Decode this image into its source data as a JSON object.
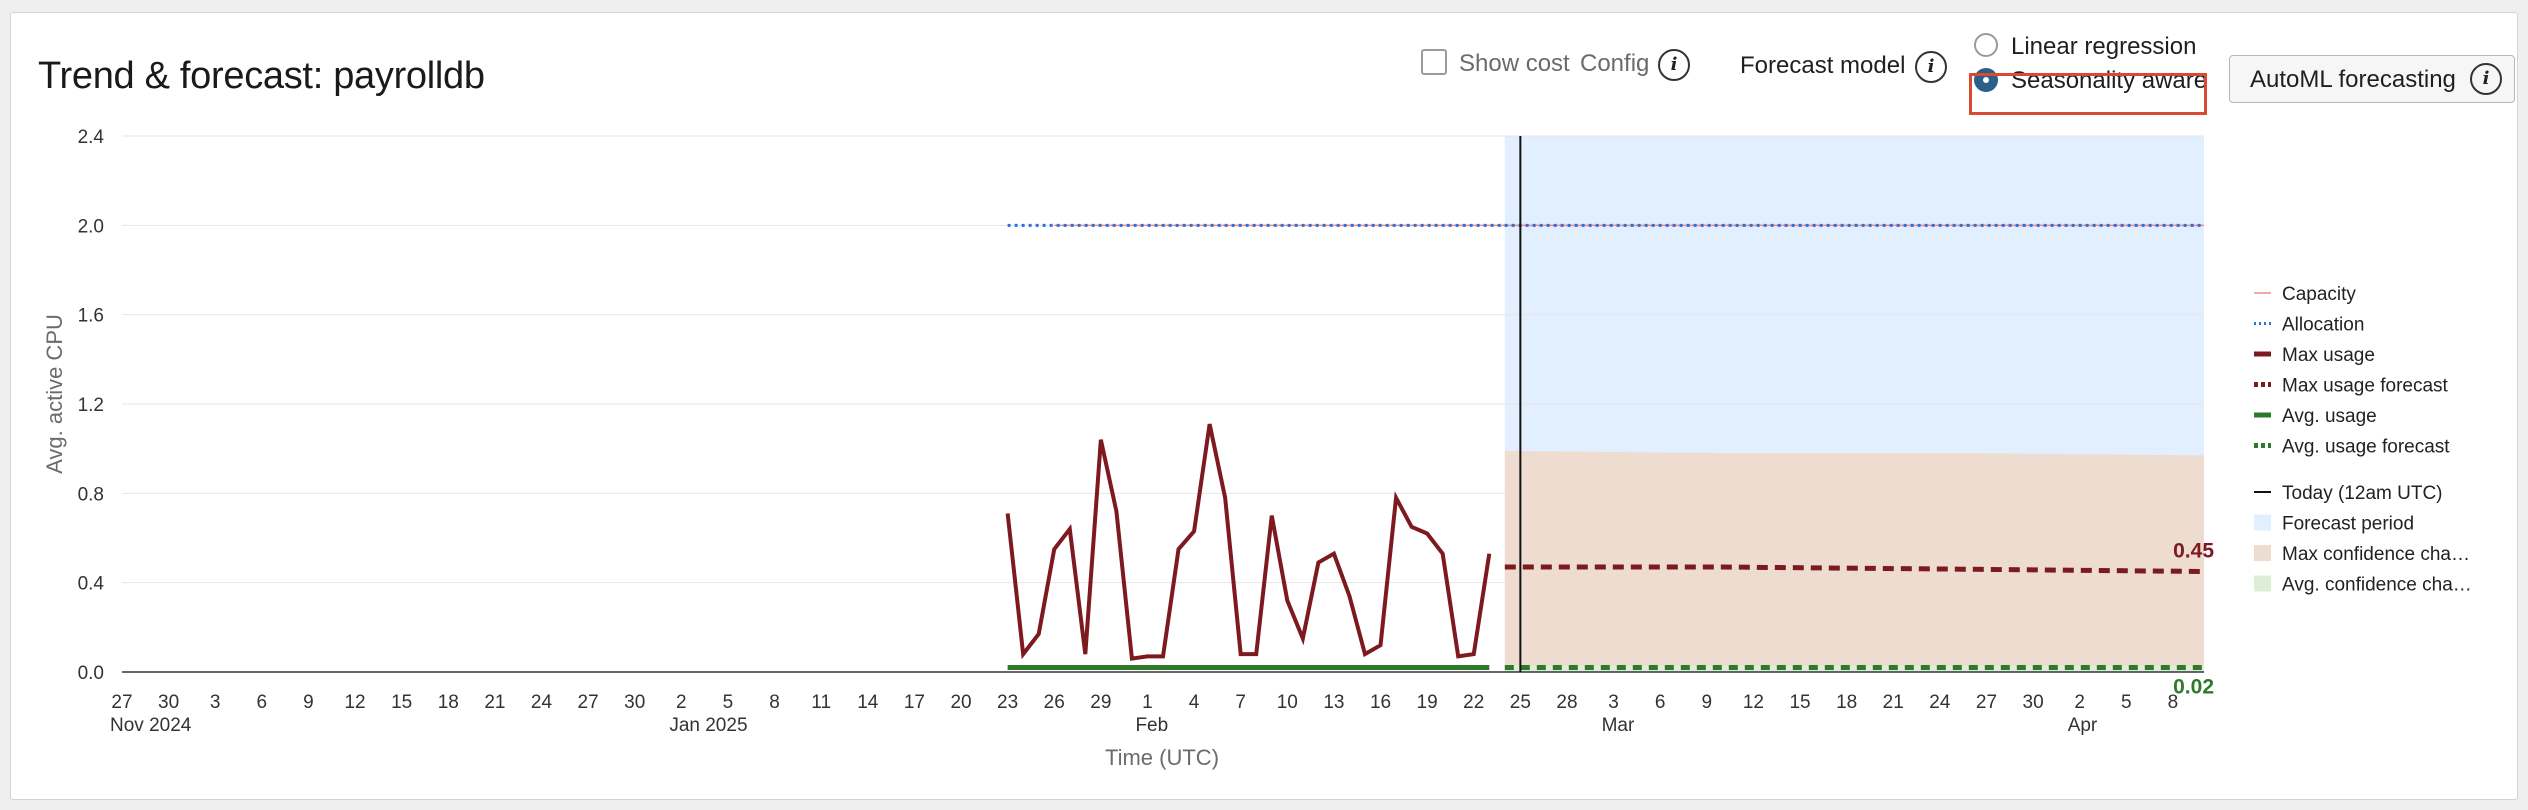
{
  "header": {
    "title": "Trend & forecast: payrolldb",
    "show_cost_label": "Show cost",
    "config_label": "Config",
    "forecast_model_label": "Forecast model",
    "model_options": [
      {
        "label": "Linear regression",
        "selected": false
      },
      {
        "label": "Seasonality aware",
        "selected": true
      }
    ],
    "automl_label": "AutoML forecasting",
    "info_glyph": "i"
  },
  "colors": {
    "capacity": "#f08a8a",
    "allocation": "#2e6fd9",
    "max_usage": "#7d1a1f",
    "avg_usage": "#2f7a2a",
    "today": "#111111",
    "forecast_period": "#e2efff",
    "max_confidence": "#efdcd0",
    "avg_confidence": "#dcefd6",
    "highlight": "#d84a32"
  },
  "chart_data": {
    "type": "line",
    "xlabel": "Time (UTC)",
    "ylabel": "Avg. active CPU",
    "ylim": [
      0,
      2.4
    ],
    "yticks": [
      "0.0",
      "0.4",
      "0.8",
      "1.2",
      "1.6",
      "2.0",
      "2.4"
    ],
    "x_range": [
      "2024-11-27",
      "2025-04-10"
    ],
    "x_ticks": [
      {
        "date": "2024-11-27",
        "label": "27",
        "sub": "Nov 2024"
      },
      {
        "date": "2024-11-30",
        "label": "30"
      },
      {
        "date": "2024-12-03",
        "label": "3"
      },
      {
        "date": "2024-12-06",
        "label": "6"
      },
      {
        "date": "2024-12-09",
        "label": "9"
      },
      {
        "date": "2024-12-12",
        "label": "12"
      },
      {
        "date": "2024-12-15",
        "label": "15"
      },
      {
        "date": "2024-12-18",
        "label": "18"
      },
      {
        "date": "2024-12-21",
        "label": "21"
      },
      {
        "date": "2024-12-24",
        "label": "24"
      },
      {
        "date": "2024-12-27",
        "label": "27"
      },
      {
        "date": "2024-12-30",
        "label": "30"
      },
      {
        "date": "2025-01-02",
        "label": "2",
        "sub": "Jan 2025"
      },
      {
        "date": "2025-01-05",
        "label": "5"
      },
      {
        "date": "2025-01-08",
        "label": "8"
      },
      {
        "date": "2025-01-11",
        "label": "11"
      },
      {
        "date": "2025-01-14",
        "label": "14"
      },
      {
        "date": "2025-01-17",
        "label": "17"
      },
      {
        "date": "2025-01-20",
        "label": "20"
      },
      {
        "date": "2025-01-23",
        "label": "23"
      },
      {
        "date": "2025-01-26",
        "label": "26"
      },
      {
        "date": "2025-01-29",
        "label": "29"
      },
      {
        "date": "2025-02-01",
        "label": "1",
        "sub": "Feb"
      },
      {
        "date": "2025-02-04",
        "label": "4"
      },
      {
        "date": "2025-02-07",
        "label": "7"
      },
      {
        "date": "2025-02-10",
        "label": "10"
      },
      {
        "date": "2025-02-13",
        "label": "13"
      },
      {
        "date": "2025-02-16",
        "label": "16"
      },
      {
        "date": "2025-02-19",
        "label": "19"
      },
      {
        "date": "2025-02-22",
        "label": "22"
      },
      {
        "date": "2025-02-25",
        "label": "25"
      },
      {
        "date": "2025-02-28",
        "label": "28"
      },
      {
        "date": "2025-03-03",
        "label": "3",
        "sub": "Mar"
      },
      {
        "date": "2025-03-06",
        "label": "6"
      },
      {
        "date": "2025-03-09",
        "label": "9"
      },
      {
        "date": "2025-03-12",
        "label": "12"
      },
      {
        "date": "2025-03-15",
        "label": "15"
      },
      {
        "date": "2025-03-18",
        "label": "18"
      },
      {
        "date": "2025-03-21",
        "label": "21"
      },
      {
        "date": "2025-03-24",
        "label": "24"
      },
      {
        "date": "2025-03-27",
        "label": "27"
      },
      {
        "date": "2025-03-30",
        "label": "30"
      },
      {
        "date": "2025-04-02",
        "label": "2",
        "sub": "Apr"
      },
      {
        "date": "2025-04-05",
        "label": "5"
      },
      {
        "date": "2025-04-08",
        "label": "8"
      }
    ],
    "forecast_period": [
      "2025-02-24",
      "2025-04-10"
    ],
    "today": "2025-02-25",
    "series": [
      {
        "name": "Capacity",
        "style": "solid",
        "color_key": "capacity",
        "x": [
          "2025-01-26",
          "2025-04-10"
        ],
        "y": [
          2.0,
          2.0
        ]
      },
      {
        "name": "Allocation",
        "style": "dotted",
        "color_key": "allocation",
        "x": [
          "2025-01-23",
          "2025-04-10"
        ],
        "y": [
          2.0,
          2.0
        ]
      },
      {
        "name": "Max usage",
        "style": "solid",
        "color_key": "max_usage",
        "x": [
          "2025-01-23",
          "2025-01-24",
          "2025-01-25",
          "2025-01-26",
          "2025-01-27",
          "2025-01-28",
          "2025-01-29",
          "2025-01-30",
          "2025-01-31",
          "2025-02-01",
          "2025-02-02",
          "2025-02-03",
          "2025-02-04",
          "2025-02-05",
          "2025-02-06",
          "2025-02-07",
          "2025-02-08",
          "2025-02-09",
          "2025-02-10",
          "2025-02-11",
          "2025-02-12",
          "2025-02-13",
          "2025-02-14",
          "2025-02-15",
          "2025-02-16",
          "2025-02-17",
          "2025-02-18",
          "2025-02-19",
          "2025-02-20",
          "2025-02-21",
          "2025-02-22",
          "2025-02-23"
        ],
        "y": [
          0.71,
          0.08,
          0.17,
          0.55,
          0.64,
          0.08,
          1.04,
          0.72,
          0.06,
          0.07,
          0.07,
          0.55,
          0.63,
          1.11,
          0.78,
          0.08,
          0.08,
          0.7,
          0.32,
          0.15,
          0.49,
          0.53,
          0.34,
          0.08,
          0.12,
          0.78,
          0.65,
          0.62,
          0.53,
          0.07,
          0.08,
          0.53
        ]
      },
      {
        "name": "Max usage forecast",
        "style": "dashed",
        "color_key": "max_usage",
        "x": [
          "2025-02-24",
          "2025-03-10",
          "2025-03-26",
          "2025-04-10"
        ],
        "y": [
          0.47,
          0.47,
          0.46,
          0.45
        ]
      },
      {
        "name": "Avg. usage",
        "style": "solid",
        "color_key": "avg_usage",
        "x": [
          "2025-01-23",
          "2025-02-23"
        ],
        "y": [
          0.02,
          0.02
        ]
      },
      {
        "name": "Avg. usage forecast",
        "style": "dashed",
        "color_key": "avg_usage",
        "x": [
          "2025-02-24",
          "2025-04-10"
        ],
        "y": [
          0.02,
          0.02
        ]
      }
    ],
    "bands": [
      {
        "name": "Max confidence cha…",
        "color_key": "max_confidence",
        "x": [
          "2025-02-24",
          "2025-03-10",
          "2025-03-26",
          "2025-04-10"
        ],
        "lower": [
          0,
          0,
          0,
          0
        ],
        "upper": [
          0.99,
          0.98,
          0.98,
          0.97
        ]
      },
      {
        "name": "Avg. confidence cha…",
        "color_key": "avg_confidence",
        "x": [
          "2025-02-24",
          "2025-04-10"
        ],
        "lower": [
          0,
          0
        ],
        "upper": [
          0.03,
          0.03
        ]
      }
    ],
    "end_labels": [
      {
        "text": "0.45",
        "value": 0.45,
        "color_key": "max_usage"
      },
      {
        "text": "0.02",
        "value": 0.02,
        "color_key": "avg_usage"
      }
    ],
    "legend": {
      "placement": "right",
      "groups": [
        [
          {
            "label": "Capacity",
            "kind": "line-solid",
            "color_key": "capacity"
          },
          {
            "label": "Allocation",
            "kind": "line-dotted",
            "color_key": "allocation"
          },
          {
            "label": "Max usage",
            "kind": "line-thick",
            "color_key": "max_usage"
          },
          {
            "label": "Max usage forecast",
            "kind": "line-dashed",
            "color_key": "max_usage"
          },
          {
            "label": "Avg. usage",
            "kind": "line-thick",
            "color_key": "avg_usage"
          },
          {
            "label": "Avg. usage forecast",
            "kind": "line-dashed",
            "color_key": "avg_usage"
          }
        ],
        [
          {
            "label": "Today (12am UTC)",
            "kind": "line-thin",
            "color_key": "today"
          },
          {
            "label": "Forecast period",
            "kind": "box",
            "color_key": "forecast_period"
          },
          {
            "label": "Max confidence cha…",
            "kind": "box",
            "color_key": "max_confidence"
          },
          {
            "label": "Avg. confidence cha…",
            "kind": "box",
            "color_key": "avg_confidence"
          }
        ]
      ]
    }
  }
}
